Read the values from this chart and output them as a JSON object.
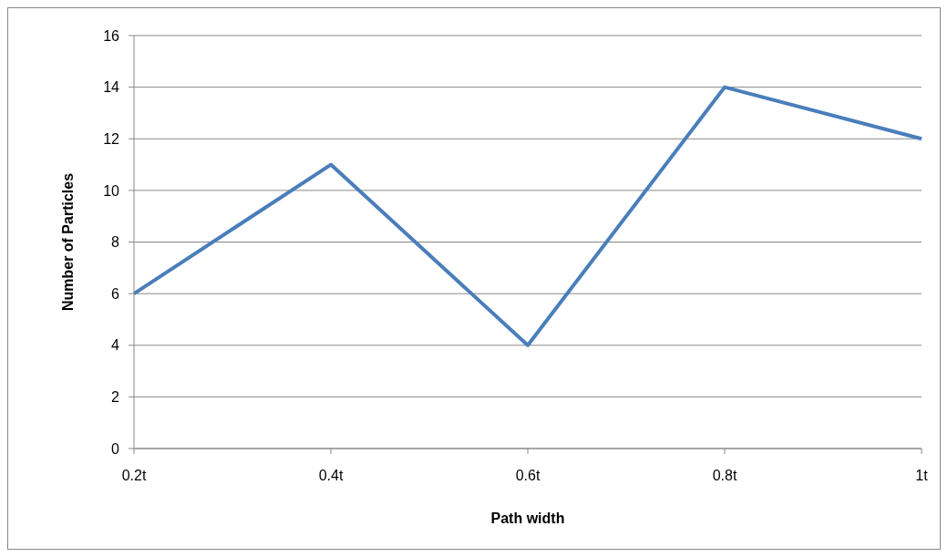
{
  "chart_data": {
    "type": "line",
    "xlabel": "Path width",
    "ylabel": "Number of Particles",
    "categories": [
      "0.2t",
      "0.4t",
      "0.6t",
      "0.8t",
      "1t"
    ],
    "series": [
      {
        "color": "#4a7ebb",
        "values": [
          6,
          11,
          4,
          14,
          12
        ]
      }
    ],
    "ylim": [
      0,
      16
    ],
    "yticks": [
      0,
      2,
      4,
      6,
      8,
      10,
      12,
      14,
      16
    ],
    "grid": "y",
    "legend": false,
    "marker": "none",
    "line_style": "solid"
  }
}
